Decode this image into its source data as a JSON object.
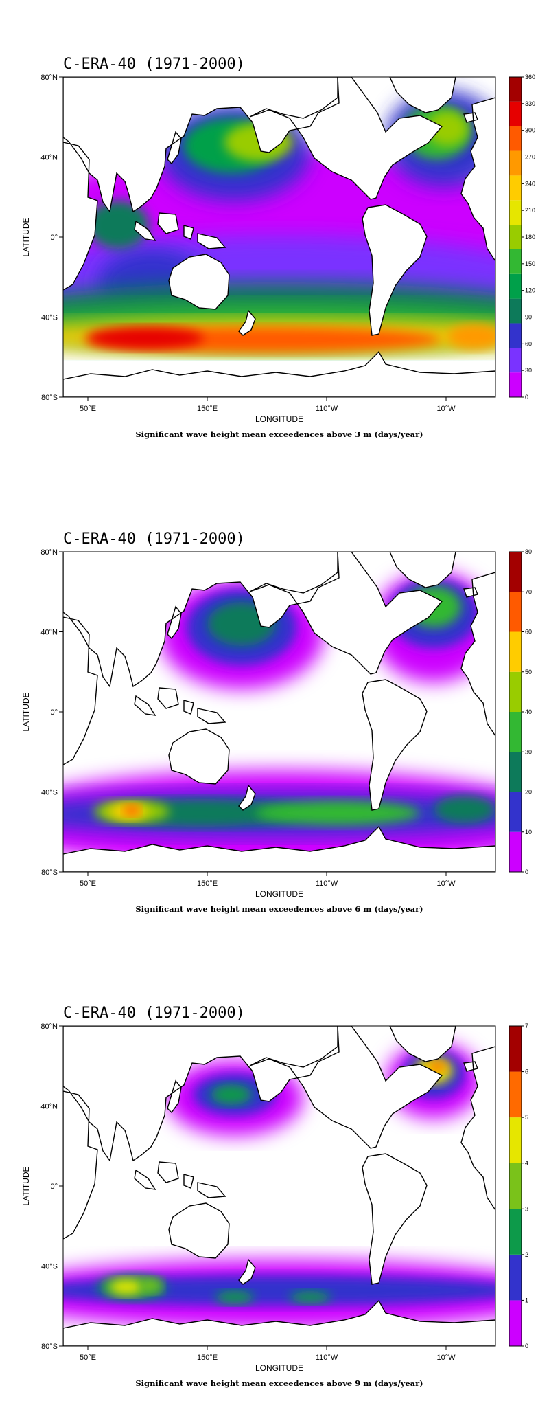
{
  "panels": [
    {
      "title": "C-ERA-40 (1971-2000)",
      "caption": "Significant wave height mean exceedences above 3 m (days/year)",
      "xlabel": "LONGITUDE",
      "ylabel": "LATITUDE",
      "x_ticks": [
        "50°E",
        "150°E",
        "110°W",
        "10°W"
      ],
      "y_ticks": [
        "80°N",
        "40°N",
        "0°",
        "40°S",
        "80°S"
      ],
      "colorbar": {
        "ticks": [
          "0",
          "30",
          "60",
          "90",
          "120",
          "150",
          "180",
          "210",
          "240",
          "270",
          "300",
          "330",
          "360"
        ],
        "colors": [
          "#cc00ff",
          "#7a33ff",
          "#3333cc",
          "#0d7a5a",
          "#00a04a",
          "#33b833",
          "#99cc00",
          "#e6e600",
          "#ffcc00",
          "#ff9900",
          "#ff5a00",
          "#e60000",
          "#a30000"
        ]
      },
      "level": 3
    },
    {
      "title": "C-ERA-40 (1971-2000)",
      "caption": "Significant wave height mean exceedences above 6 m (days/year)",
      "xlabel": "LONGITUDE",
      "ylabel": "LATITUDE",
      "x_ticks": [
        "50°E",
        "150°E",
        "110°W",
        "10°W"
      ],
      "y_ticks": [
        "80°N",
        "40°N",
        "0°",
        "40°S",
        "80°S"
      ],
      "colorbar": {
        "ticks": [
          "0",
          "10",
          "20",
          "30",
          "40",
          "50",
          "60",
          "70",
          "80"
        ],
        "colors": [
          "#cc00ff",
          "#3333cc",
          "#0d7a5a",
          "#33b833",
          "#99cc00",
          "#ffcc00",
          "#ff5a00",
          "#a30000"
        ]
      },
      "level": 6
    },
    {
      "title": "C-ERA-40 (1971-2000)",
      "caption": "Significant wave height mean exceedences above 9 m (days/year)",
      "xlabel": "LONGITUDE",
      "ylabel": "LATITUDE",
      "x_ticks": [
        "50°E",
        "150°E",
        "110°W",
        "10°W"
      ],
      "y_ticks": [
        "80°N",
        "40°N",
        "0°",
        "40°S",
        "80°S"
      ],
      "colorbar": {
        "ticks": [
          "0",
          "1",
          "2",
          "3",
          "4",
          "5",
          "6",
          "7"
        ],
        "colors": [
          "#cc00ff",
          "#3333cc",
          "#0d9a4a",
          "#7ac21a",
          "#e6e600",
          "#ff6a00",
          "#a30000"
        ]
      },
      "level": 9
    }
  ]
}
